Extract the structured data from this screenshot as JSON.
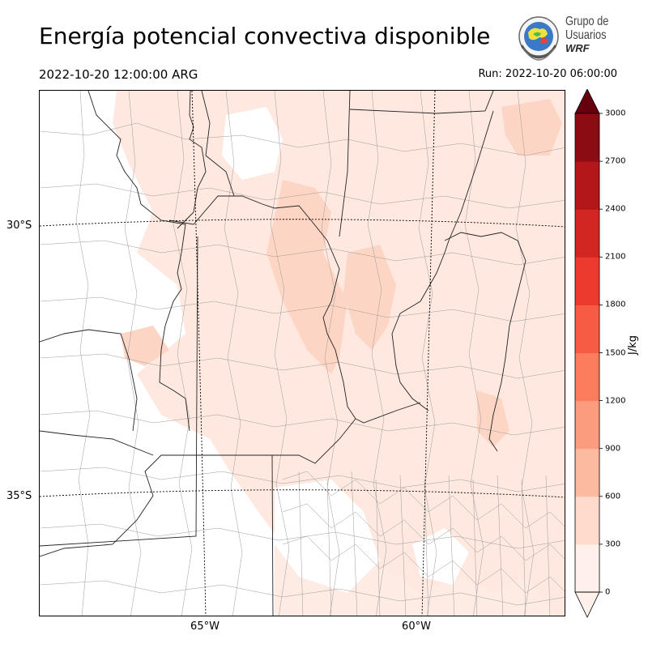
{
  "header": {
    "title": "Energía potencial convectiva disponible",
    "valid_time": "2022-10-20 12:00:00 ARG",
    "run": "Run: 2022-10-20 06:00:00"
  },
  "logo": {
    "line1": "Grupo de",
    "line2": "Usuarios",
    "line3": "WRF",
    "icon": "globe-seal-icon"
  },
  "map": {
    "latitude_labels": [
      "30°S",
      "35°S"
    ],
    "longitude_labels": [
      "65°W",
      "60°W"
    ],
    "field": "CAPE",
    "max_region_level": "0-300 / 300-600 J/kg"
  },
  "colorbar": {
    "unit": "J/kg",
    "ticks": [
      "0",
      "300",
      "600",
      "900",
      "1200",
      "1500",
      "1800",
      "2100",
      "2400",
      "2700",
      "3000"
    ],
    "colors": [
      "#fff0eb",
      "#fedbcc",
      "#fcbba1",
      "#fc9c7e",
      "#fb7d5e",
      "#f85b44",
      "#ec3a2e",
      "#d22621",
      "#b31719",
      "#8b0c13",
      "#67000d"
    ],
    "extend": "both"
  }
}
